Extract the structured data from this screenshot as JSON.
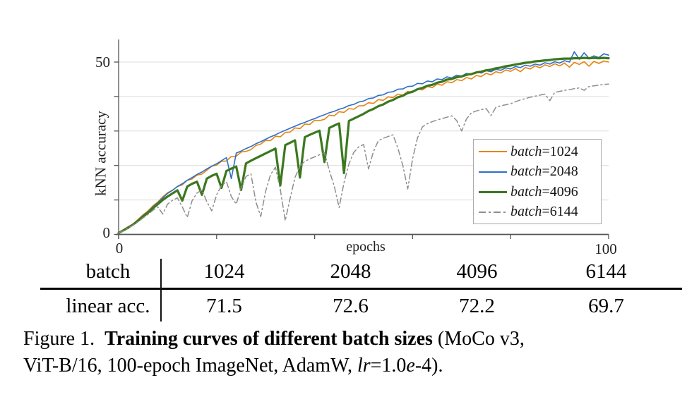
{
  "chart_data": {
    "type": "line",
    "title": "",
    "xlabel": "epochs",
    "ylabel": "kNN accuracy",
    "x_min": 0,
    "x_max": 100,
    "ylim": [
      0,
      56
    ],
    "x_tick_values": [
      0,
      20,
      40,
      60,
      80,
      100
    ],
    "y_tick_values": [
      0,
      10,
      20,
      30,
      40,
      50
    ],
    "grid_y_values": [
      10,
      20,
      30,
      40,
      50
    ],
    "x_tick_labels_visible": [
      "0",
      "100"
    ],
    "y_tick_labels_visible": [
      "0",
      "50"
    ],
    "legend_position": "lower right inside plot",
    "series": [
      {
        "name": "batch=1024",
        "legend_italic": "batch",
        "legend_rest": "=1024",
        "color": "#E8820E",
        "line_width": 1.6,
        "dash": false,
        "values": [
          0.5,
          1.4,
          2.3,
          3.1,
          4.4,
          5.7,
          6.8,
          8.3,
          9.4,
          10.9,
          12.1,
          12.8,
          13.9,
          14.4,
          15.7,
          16.1,
          17.2,
          17.5,
          18.6,
          19.8,
          20.1,
          21.2,
          21.3,
          22.6,
          22.7,
          23.9,
          24.1,
          24.6,
          25.8,
          26.2,
          27.3,
          27.2,
          28.5,
          28.3,
          29.6,
          29.7,
          30.9,
          30.7,
          32.0,
          31.9,
          33.1,
          33.0,
          33.4,
          34.6,
          34.4,
          35.6,
          35.4,
          36.5,
          36.3,
          37.3,
          37.3,
          38.2,
          38.0,
          39.1,
          38.9,
          39.9,
          39.7,
          40.7,
          40.4,
          41.5,
          41.2,
          42.2,
          41.9,
          42.9,
          42.6,
          43.6,
          43.3,
          44.3,
          44.0,
          44.9,
          44.6,
          45.5,
          45.1,
          46.1,
          45.8,
          46.7,
          46.3,
          47.2,
          46.8,
          47.7,
          47.3,
          48.1,
          47.2,
          48.4,
          48.0,
          48.9,
          48.3,
          49.2,
          48.7,
          49.5,
          48.9,
          49.7,
          48.5,
          49.9,
          49.3,
          50.1,
          48.8,
          50.2,
          49.6,
          50.3,
          50.0
        ]
      },
      {
        "name": "batch=2048",
        "legend_italic": "batch",
        "legend_rest": "=2048",
        "color": "#2E6EC8",
        "line_width": 1.6,
        "dash": false,
        "values": [
          0.5,
          1.3,
          2.2,
          3.0,
          4.2,
          5.5,
          6.6,
          8.0,
          9.2,
          10.6,
          11.9,
          12.8,
          13.9,
          14.7,
          15.7,
          16.5,
          17.4,
          18.1,
          19.0,
          19.8,
          20.5,
          21.4,
          22.3,
          16.2,
          23.6,
          24.2,
          24.9,
          25.5,
          26.3,
          26.9,
          27.6,
          28.3,
          28.9,
          29.6,
          30.2,
          30.8,
          31.4,
          32.0,
          32.5,
          33.1,
          33.6,
          34.2,
          34.7,
          35.3,
          35.7,
          36.3,
          36.7,
          37.4,
          37.7,
          38.4,
          38.7,
          39.4,
          39.6,
          40.3,
          40.5,
          41.2,
          41.4,
          42.1,
          42.2,
          42.9,
          43.0,
          43.8,
          43.7,
          44.5,
          44.3,
          45.1,
          44.9,
          45.7,
          45.4,
          46.2,
          45.9,
          46.7,
          46.3,
          47.1,
          46.8,
          47.5,
          47.2,
          47.9,
          47.6,
          48.3,
          48.0,
          48.7,
          48.4,
          49.1,
          48.8,
          49.4,
          49.1,
          49.8,
          49.4,
          50.1,
          49.7,
          50.4,
          50.0,
          53.0,
          50.8,
          52.7,
          51.1,
          51.8,
          51.3,
          52.4,
          52.0
        ]
      },
      {
        "name": "batch=4096",
        "legend_italic": "batch",
        "legend_rest": "=4096",
        "color": "#3B781E",
        "line_width": 3.2,
        "dash": false,
        "values": [
          0.4,
          1.2,
          2.0,
          2.9,
          4.0,
          5.2,
          6.3,
          7.6,
          8.8,
          10.0,
          11.0,
          11.9,
          12.8,
          9.8,
          13.9,
          14.7,
          15.3,
          11.5,
          16.2,
          17.0,
          17.6,
          13.5,
          18.4,
          19.1,
          19.7,
          12.9,
          20.6,
          21.4,
          22.1,
          22.8,
          23.5,
          24.2,
          24.9,
          14.2,
          25.9,
          26.6,
          27.3,
          16.5,
          28.2,
          28.9,
          29.5,
          30.1,
          21.0,
          30.9,
          31.6,
          32.2,
          17.8,
          32.9,
          33.6,
          34.3,
          35.0,
          35.8,
          36.4,
          37.2,
          37.7,
          38.5,
          39.0,
          39.8,
          40.2,
          41.0,
          41.4,
          42.1,
          42.5,
          43.1,
          43.4,
          44.0,
          44.3,
          44.9,
          45.1,
          45.6,
          45.8,
          46.3,
          46.5,
          47.0,
          47.2,
          47.6,
          47.8,
          48.2,
          48.4,
          48.8,
          49.0,
          49.3,
          49.5,
          49.8,
          49.9,
          50.2,
          50.3,
          50.5,
          50.6,
          50.8,
          50.9,
          51.0,
          51.0,
          51.1,
          51.1,
          51.2,
          51.1,
          51.2,
          51.1,
          51.2,
          51.1
        ]
      },
      {
        "name": "batch=6144",
        "legend_italic": "batch",
        "legend_rest": "=6144",
        "color": "#8E8E8E",
        "line_width": 1.5,
        "dash": true,
        "values": [
          0.4,
          1.1,
          1.9,
          2.7,
          3.7,
          4.8,
          5.8,
          7.0,
          8.0,
          5.9,
          8.8,
          9.9,
          10.6,
          8.0,
          4.9,
          9.8,
          12.0,
          12.9,
          9.5,
          6.8,
          11.5,
          14.2,
          15.3,
          11.0,
          8.8,
          13.5,
          16.8,
          17.6,
          9.5,
          5.2,
          12.5,
          17.3,
          19.5,
          13.0,
          4.0,
          10.5,
          16.5,
          19.9,
          21.2,
          21.9,
          22.5,
          23.1,
          23.7,
          18.5,
          14.0,
          7.8,
          15.0,
          20.5,
          23.8,
          25.4,
          26.1,
          19.0,
          24.0,
          27.2,
          27.9,
          28.4,
          28.9,
          25.0,
          20.0,
          13.2,
          22.0,
          28.0,
          31.2,
          32.1,
          32.7,
          33.2,
          33.6,
          34.0,
          34.4,
          33.0,
          30.0,
          33.5,
          35.3,
          35.8,
          36.2,
          36.5,
          34.5,
          36.9,
          37.3,
          37.6,
          37.9,
          38.5,
          39.0,
          39.4,
          39.8,
          40.1,
          40.4,
          40.7,
          38.8,
          41.2,
          41.5,
          41.8,
          42.0,
          42.3,
          42.5,
          41.8,
          42.9,
          43.1,
          43.3,
          43.5,
          43.6
        ]
      }
    ]
  },
  "table": {
    "row1_header": "batch",
    "row1_values": [
      "1024",
      "2048",
      "4096",
      "6144"
    ],
    "row2_header": "linear acc.",
    "row2_values": [
      "71.5",
      "72.6",
      "72.2",
      "69.7"
    ]
  },
  "caption": {
    "label": "Figure 1.",
    "title_bold": "Training curves of different batch sizes",
    "after_title": "(MoCo v3,",
    "line2": "ViT-B/16, 100-epoch ImageNet, AdamW, ",
    "lr_var": "lr",
    "lr_mid": "=1.0",
    "e_var": "e",
    "tail": "-4)."
  }
}
